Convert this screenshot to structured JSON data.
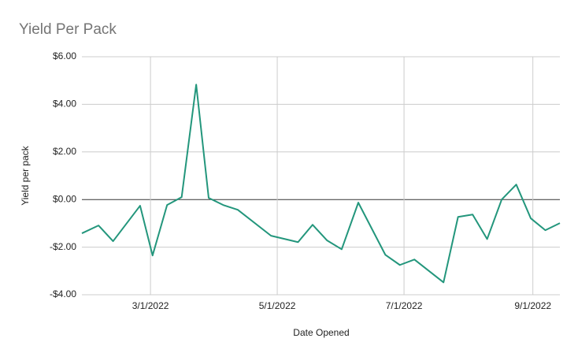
{
  "chart_data": {
    "type": "line",
    "title": "Yield Per Pack",
    "x_label": "Date Opened",
    "y_label": "Yield per pack",
    "x": [
      "1/27/2022",
      "2/4/2022",
      "2/11/2022",
      "2/24/2022",
      "3/2/2022",
      "3/9/2022",
      "3/16/2022",
      "3/23/2022",
      "3/29/2022",
      "4/5/2022",
      "4/12/2022",
      "4/28/2022",
      "5/11/2022",
      "5/18/2022",
      "5/25/2022",
      "6/1/2022",
      "6/9/2022",
      "6/22/2022",
      "6/29/2022",
      "7/6/2022",
      "7/20/2022",
      "7/27/2022",
      "8/3/2022",
      "8/10/2022",
      "8/17/2022",
      "8/24/2022",
      "8/31/2022",
      "9/7/2022",
      "9/14/2022"
    ],
    "series": [
      {
        "name": "Yield per pack",
        "color": "#23967c",
        "values": [
          -1.42,
          -1.09,
          -1.75,
          -0.26,
          -2.35,
          -0.23,
          0.1,
          4.83,
          0.07,
          -0.23,
          -0.43,
          -1.52,
          -1.79,
          -1.06,
          -1.72,
          -2.09,
          -0.13,
          -2.32,
          -2.75,
          -2.52,
          -3.48,
          -0.73,
          -0.63,
          -1.66,
          0.0,
          0.63,
          -0.79,
          -1.29,
          -0.99
        ]
      }
    ],
    "xlim": [
      "1/27/2022",
      "9/14/2022"
    ],
    "xticks": [
      "3/1/2022",
      "5/1/2022",
      "7/1/2022",
      "9/1/2022"
    ],
    "ylim": [
      -4,
      6
    ],
    "yticks": [
      {
        "value": -4,
        "label": "-$4.00"
      },
      {
        "value": -2,
        "label": "-$2.00"
      },
      {
        "value": 0,
        "label": "$0.00"
      },
      {
        "value": 2,
        "label": "$2.00"
      },
      {
        "value": 4,
        "label": "$4.00"
      },
      {
        "value": 6,
        "label": "$6.00"
      }
    ],
    "grid": true
  }
}
